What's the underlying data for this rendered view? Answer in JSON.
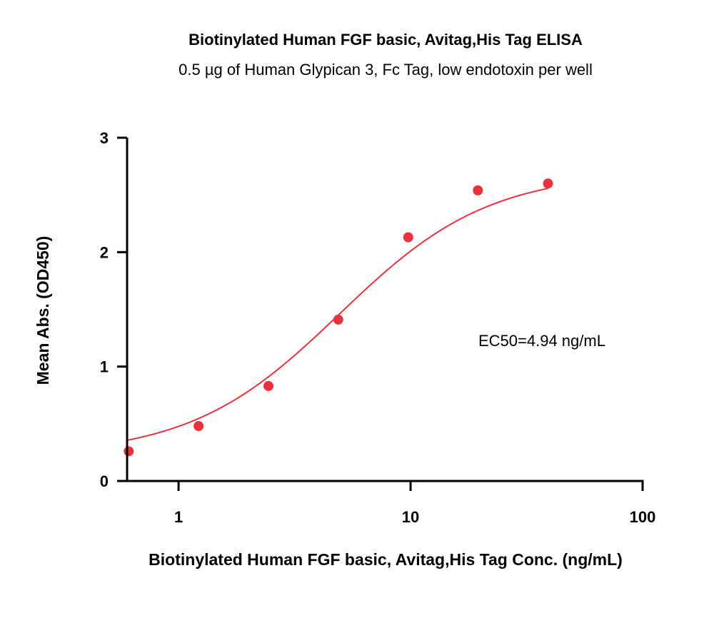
{
  "colors": {
    "series": "#e8323c",
    "axis": "#000000",
    "background": "#ffffff"
  },
  "chart_data": {
    "type": "scatter",
    "title": "Biotinylated Human FGF basic, Avitag,His Tag ELISA",
    "subtitle": "0.5 µg of Human Glypican 3, Fc Tag, low endotoxin per well",
    "xlabel": "Biotinylated Human FGF basic, Avitag,His Tag Conc. (ng/mL)",
    "ylabel": "Mean Abs. (OD450)",
    "x_scale": "log",
    "xlim": [
      0.6,
      100
    ],
    "ylim": [
      0,
      3
    ],
    "x_ticks": [
      1,
      10,
      100
    ],
    "x_tick_labels": [
      "1",
      "10",
      "100"
    ],
    "y_ticks": [
      0,
      1,
      2,
      3
    ],
    "y_tick_labels": [
      "0",
      "1",
      "2",
      "3"
    ],
    "grid": false,
    "series": [
      {
        "x": [
          0.61,
          1.22,
          2.44,
          4.88,
          9.77,
          19.5,
          39.1
        ],
        "y": [
          0.26,
          0.48,
          0.83,
          1.41,
          2.13,
          2.54,
          2.6
        ],
        "fit": "4PL"
      }
    ],
    "annotations": [
      {
        "text": "EC50=4.94 ng/mL"
      }
    ]
  }
}
